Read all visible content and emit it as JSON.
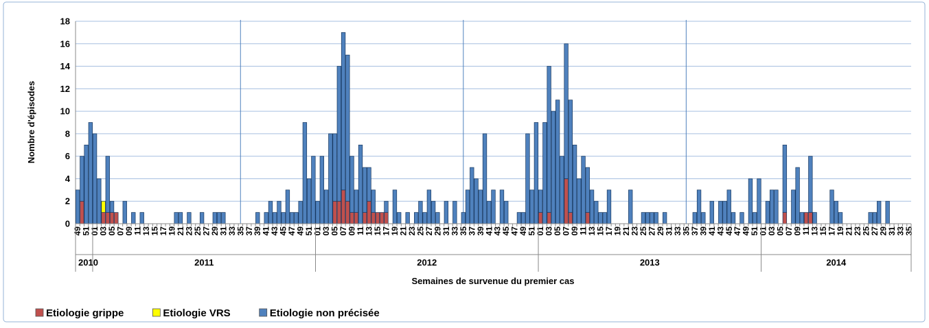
{
  "chart_data": {
    "type": "stacked_bar",
    "y_label": "Nombre d'épisodes",
    "x_label": "Semaines de survenue du premier cas",
    "ylim": [
      0,
      18
    ],
    "yticks": [
      0,
      2,
      4,
      6,
      8,
      10,
      12,
      14,
      16,
      18
    ],
    "grid": true,
    "legend": "bottom-left",
    "x_groups": [
      "2010",
      "2011",
      "2012",
      "2013",
      "2014"
    ],
    "categories": [
      "49",
      null,
      "51",
      null,
      "01",
      null,
      "03",
      null,
      "05",
      null,
      "07",
      null,
      "09",
      null,
      "11",
      null,
      "13",
      null,
      "15",
      null,
      "17",
      null,
      "19",
      null,
      "21",
      null,
      "23",
      null,
      "25",
      null,
      "27",
      null,
      "29",
      null,
      "31",
      null,
      "33",
      null,
      "35",
      null,
      "37",
      null,
      "39",
      null,
      "41",
      null,
      "43",
      null,
      "45",
      null,
      "47",
      null,
      "49",
      null,
      "51",
      null,
      "01",
      null,
      "03",
      null,
      "05",
      null,
      "07",
      null,
      "09",
      null,
      "11",
      null,
      "13",
      null,
      "15",
      null,
      "17",
      null,
      "19",
      null,
      "21",
      null,
      "23",
      null,
      "25",
      null,
      "27",
      null,
      "29",
      null,
      "31",
      null,
      "33",
      null,
      "35",
      null,
      "37",
      null,
      "39",
      null,
      "41",
      null,
      "43",
      null,
      "45",
      null,
      "47",
      null,
      "49",
      null,
      "51",
      null,
      "01",
      null,
      "03",
      null,
      "05",
      null,
      "07",
      null,
      "09",
      null,
      "11",
      null,
      "13",
      null,
      "15",
      null,
      "17",
      null,
      "19",
      null,
      "21",
      null,
      "23",
      null,
      "25",
      null,
      "27",
      null,
      "29",
      null,
      "31",
      null,
      "33",
      null,
      "35",
      null,
      "37",
      null,
      "39",
      null,
      "41",
      null,
      "43",
      null,
      "45",
      null,
      "47",
      null,
      "49",
      null,
      "51",
      null,
      "01",
      null,
      "03",
      null,
      "05",
      null,
      "07",
      null,
      "09",
      null,
      "11",
      null,
      "13",
      null,
      "15",
      null,
      "17",
      null,
      "19",
      null,
      "21",
      null,
      "23",
      null,
      "25",
      null,
      "27",
      null,
      "29",
      null,
      "31",
      null,
      "33",
      null,
      "35"
    ],
    "series": [
      {
        "name": "Etiologie grippe",
        "color": "#c0504d",
        "values": [
          0,
          2,
          0,
          0,
          0,
          0,
          1,
          1,
          1,
          1,
          0,
          0,
          0,
          0,
          0,
          0,
          0,
          0,
          0,
          0,
          0,
          0,
          0,
          0,
          0,
          0,
          0,
          0,
          0,
          0,
          0,
          0,
          0,
          0,
          0,
          0,
          0,
          0,
          0,
          0,
          0,
          0,
          0,
          0,
          0,
          0,
          0,
          0,
          0,
          0,
          0,
          0,
          0,
          0,
          0,
          0,
          0,
          0,
          0,
          0,
          2,
          2,
          3,
          2,
          1,
          1,
          0,
          1,
          2,
          1,
          1,
          1,
          1,
          0,
          0,
          0,
          0,
          0,
          0,
          0,
          0,
          0,
          0,
          0,
          0,
          0,
          0,
          0,
          0,
          0,
          0,
          0,
          0,
          0,
          0,
          0,
          0,
          0,
          0,
          0,
          0,
          0,
          0,
          0,
          0,
          0,
          0,
          0,
          1,
          0,
          1,
          0,
          0,
          0,
          4,
          1,
          0,
          0,
          0,
          1,
          0,
          0,
          0,
          0,
          0,
          0,
          0,
          0,
          0,
          0,
          0,
          0,
          0,
          0,
          0,
          0,
          0,
          0,
          0,
          0,
          0,
          0,
          0,
          0,
          0,
          0,
          0,
          0,
          0,
          0,
          0,
          0,
          0,
          0,
          0,
          0,
          0,
          0,
          0,
          0,
          0,
          0,
          0,
          0,
          0,
          1,
          0,
          0,
          0,
          0,
          1,
          1,
          0,
          0,
          0,
          0,
          0,
          0,
          0,
          0,
          0,
          0,
          0,
          0,
          0,
          0,
          0,
          0,
          0,
          0,
          0,
          0,
          0,
          0,
          0
        ]
      },
      {
        "name": "Etiologie VRS",
        "color": "#ffff00",
        "values": [
          0,
          0,
          0,
          0,
          0,
          0,
          1,
          0,
          0,
          0,
          0,
          0,
          0,
          0,
          0,
          0,
          0,
          0,
          0,
          0,
          0,
          0,
          0,
          0,
          0,
          0,
          0,
          0,
          0,
          0,
          0,
          0,
          0,
          0,
          0,
          0,
          0,
          0,
          0,
          0,
          0,
          0,
          0,
          0,
          0,
          0,
          0,
          0,
          0,
          0,
          0,
          0,
          0,
          0,
          0,
          0,
          0,
          0,
          0,
          0,
          0,
          0,
          0,
          0,
          0,
          0,
          0,
          0,
          0,
          0,
          0,
          0,
          0,
          0,
          0,
          0,
          0,
          0,
          0,
          0,
          0,
          0,
          0,
          0,
          0,
          0,
          0,
          0,
          0,
          0,
          0,
          0,
          0,
          0,
          0,
          0,
          0,
          0,
          0,
          0,
          0,
          0,
          0,
          0,
          0,
          0,
          0,
          0,
          0,
          0,
          0,
          0,
          0,
          0,
          0,
          0,
          0,
          0,
          0,
          0,
          0,
          0,
          0,
          0,
          0,
          0,
          0,
          0,
          0,
          0,
          0,
          0,
          0,
          0,
          0,
          0,
          0,
          0,
          0,
          0,
          0,
          0,
          0,
          0,
          0,
          0,
          0,
          0,
          0,
          0,
          0,
          0,
          0,
          0,
          0,
          0,
          0,
          0,
          0,
          0,
          0,
          0,
          0,
          0,
          0,
          0,
          0,
          0,
          0,
          0,
          0,
          0,
          0,
          0,
          0,
          0,
          0,
          0,
          0,
          0,
          0,
          0,
          0,
          0,
          0,
          0,
          0,
          0,
          0,
          0,
          0,
          0,
          0,
          0,
          0
        ]
      },
      {
        "name": "Etiologie non précisée",
        "color": "#4f81bd",
        "values": [
          3,
          4,
          7,
          9,
          8,
          4,
          0,
          5,
          1,
          0,
          0,
          2,
          0,
          1,
          0,
          1,
          0,
          0,
          0,
          0,
          0,
          0,
          0,
          1,
          1,
          0,
          1,
          0,
          0,
          1,
          0,
          0,
          1,
          1,
          1,
          0,
          0,
          0,
          0,
          0,
          0,
          0,
          1,
          0,
          1,
          2,
          1,
          2,
          1,
          3,
          1,
          1,
          2,
          9,
          4,
          6,
          2,
          6,
          3,
          8,
          6,
          12,
          14,
          13,
          5,
          2,
          7,
          4,
          3,
          2,
          0,
          0,
          1,
          0,
          3,
          1,
          0,
          1,
          0,
          1,
          2,
          1,
          3,
          2,
          1,
          0,
          2,
          0,
          2,
          0,
          1,
          3,
          5,
          4,
          3,
          8,
          2,
          3,
          0,
          3,
          2,
          0,
          0,
          1,
          1,
          8,
          3,
          9,
          2,
          9,
          13,
          10,
          11,
          6,
          12,
          10,
          7,
          4,
          6,
          4,
          3,
          2,
          1,
          1,
          3,
          0,
          0,
          0,
          0,
          3,
          0,
          0,
          1,
          1,
          1,
          1,
          0,
          1,
          0,
          0,
          0,
          0,
          0,
          0,
          1,
          3,
          1,
          0,
          2,
          0,
          2,
          2,
          3,
          1,
          0,
          1,
          0,
          4,
          1,
          4,
          0,
          2,
          3,
          3,
          0,
          6,
          0,
          3,
          5,
          1,
          0,
          5,
          1,
          0,
          0,
          0,
          3,
          2,
          1,
          0,
          0,
          0,
          0,
          0,
          0,
          1,
          1,
          2,
          0,
          2,
          0,
          0,
          0,
          0,
          0
        ]
      }
    ]
  }
}
